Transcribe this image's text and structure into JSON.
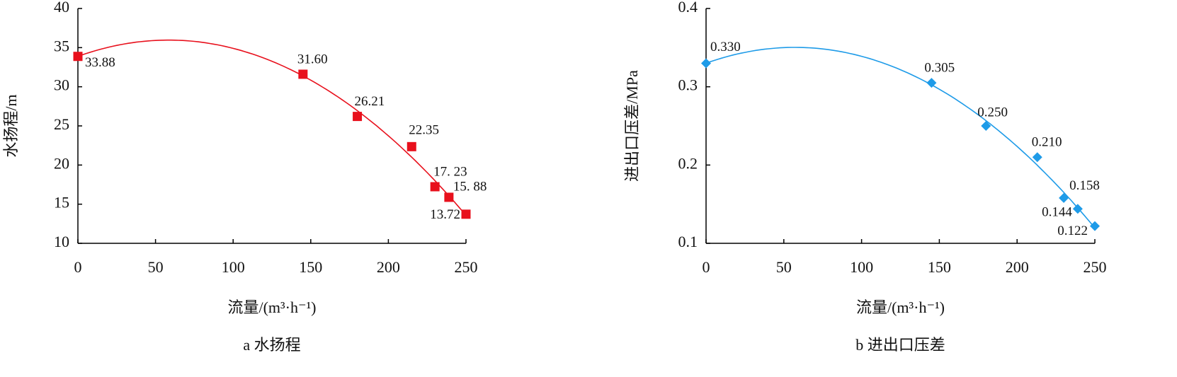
{
  "chart_data": [
    {
      "type": "scatter",
      "caption": "a  水扬程",
      "x_label": "流量/(m³·h⁻¹)",
      "y_label": "水扬程/m",
      "x": [
        0,
        145,
        180,
        215,
        230,
        239,
        250
      ],
      "values": [
        33.88,
        31.6,
        26.21,
        22.35,
        17.23,
        15.88,
        13.72
      ],
      "value_labels": [
        "33.88",
        "31.60",
        "26.21",
        "22.35",
        "17. 23",
        "15. 88",
        "13.72"
      ],
      "color": "#e8101c",
      "marker": "square",
      "trendline": true,
      "xlim": [
        0,
        250
      ],
      "xticks": [
        0,
        50,
        100,
        150,
        200,
        250
      ],
      "ylim": [
        10,
        40
      ],
      "yticks": [
        10,
        15,
        20,
        25,
        30,
        35,
        40
      ]
    },
    {
      "type": "scatter",
      "caption": "b  进出口压差",
      "x_label": "流量/(m³·h⁻¹)",
      "y_label": "进出口压差/MPa",
      "x": [
        0,
        145,
        180,
        213,
        230,
        239,
        250
      ],
      "values": [
        0.33,
        0.305,
        0.25,
        0.21,
        0.158,
        0.144,
        0.122
      ],
      "value_labels": [
        "0.330",
        "0.305",
        "0.250",
        "0.210",
        "0.158",
        "0.144",
        "0.122"
      ],
      "color": "#1e9be8",
      "marker": "diamond",
      "trendline": true,
      "xlim": [
        0,
        250
      ],
      "xticks": [
        0,
        50,
        100,
        150,
        200,
        250
      ],
      "ylim": [
        0.1,
        0.4
      ],
      "yticks": [
        0.1,
        0.2,
        0.3,
        0.4
      ]
    }
  ]
}
